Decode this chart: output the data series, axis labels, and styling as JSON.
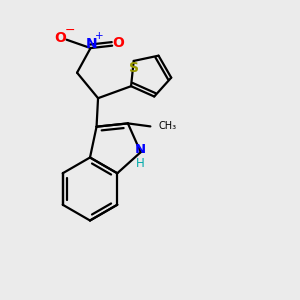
{
  "bg_color": "#ebebeb",
  "bond_color": "#000000",
  "N_color": "#0000ff",
  "O_color": "#ff0000",
  "S_color": "#999900",
  "H_color": "#00aaaa",
  "figsize": [
    3.0,
    3.0
  ],
  "dpi": 100,
  "xlim": [
    0,
    10
  ],
  "ylim": [
    0,
    10
  ]
}
